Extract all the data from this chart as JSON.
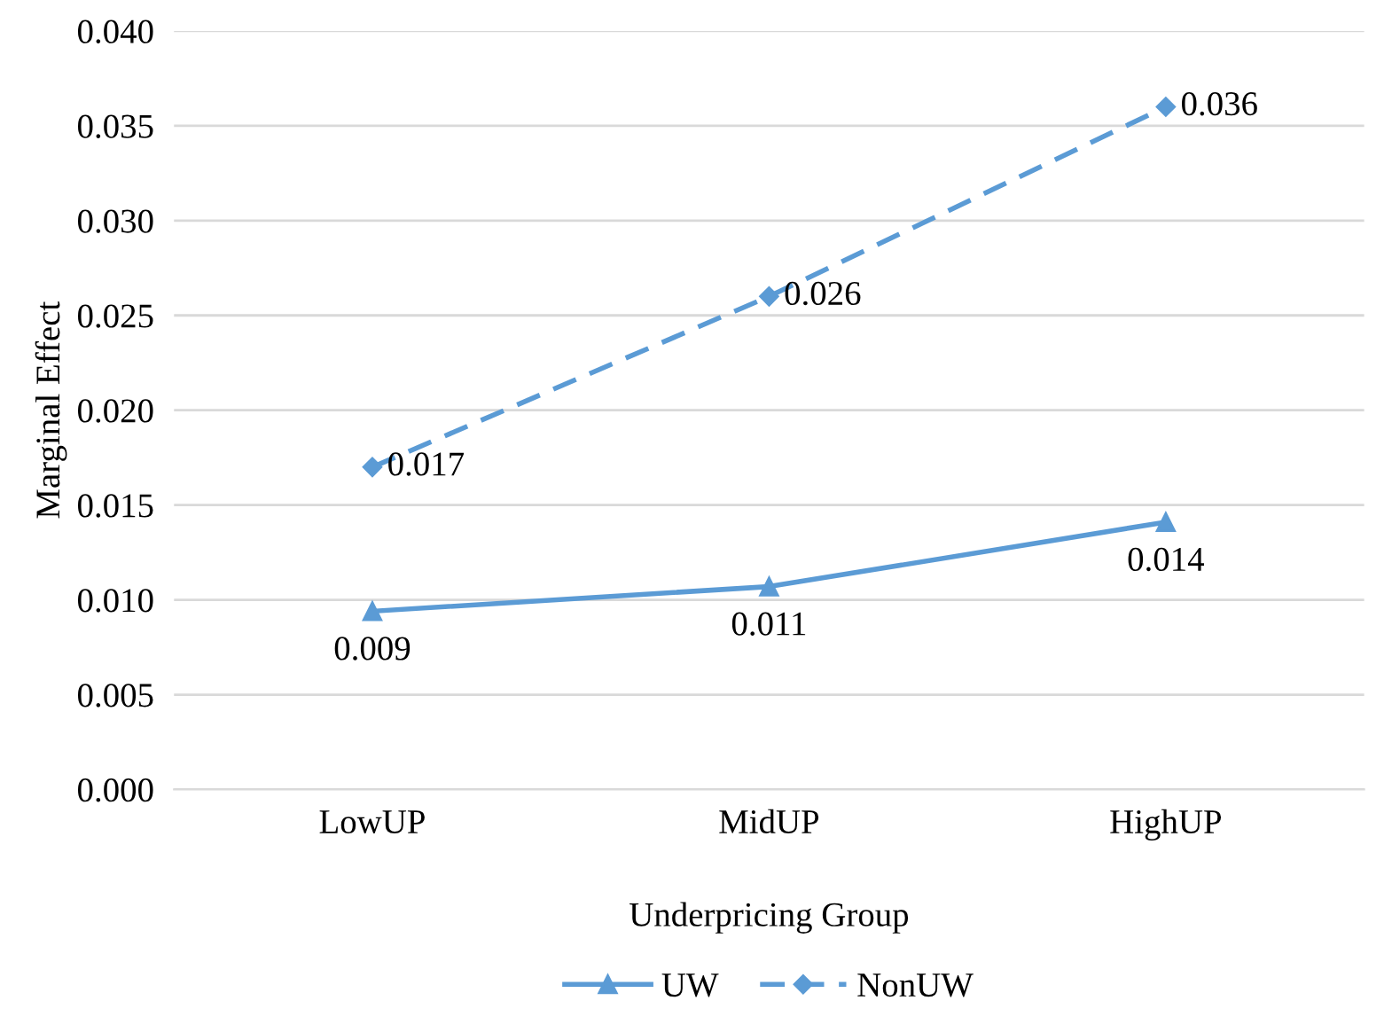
{
  "chart_data": {
    "type": "line",
    "xlabel": "Underpricing Group",
    "ylabel": "Marginal Effect",
    "categories": [
      "LowUP",
      "MidUP",
      "HighUP"
    ],
    "series": [
      {
        "name": "UW",
        "color": "#5b9bd5",
        "values": [
          0.0094,
          0.0107,
          0.0141
        ],
        "marker": "triangle",
        "line_style": "solid",
        "value_labels": [
          "0.009",
          "0.011",
          "0.014"
        ]
      },
      {
        "name": "NonUW",
        "color": "#5b9bd5",
        "values": [
          0.017,
          0.026,
          0.036
        ],
        "marker": "diamond",
        "line_style": "dashed",
        "value_labels": [
          "0.017",
          "0.026",
          "0.036"
        ]
      }
    ],
    "ylim": [
      0,
      0.04
    ],
    "yticks": [
      {
        "value": 0,
        "label": "0.000"
      },
      {
        "value": 0.005,
        "label": "0.005"
      },
      {
        "value": 0.01,
        "label": "0.010"
      },
      {
        "value": 0.015,
        "label": "0.015"
      },
      {
        "value": 0.02,
        "label": "0.020"
      },
      {
        "value": 0.025,
        "label": "0.025"
      },
      {
        "value": 0.03,
        "label": "0.030"
      },
      {
        "value": 0.035,
        "label": "0.035"
      },
      {
        "value": 0.04,
        "label": "0.040"
      }
    ],
    "grid": "y",
    "legend": "bottom"
  }
}
